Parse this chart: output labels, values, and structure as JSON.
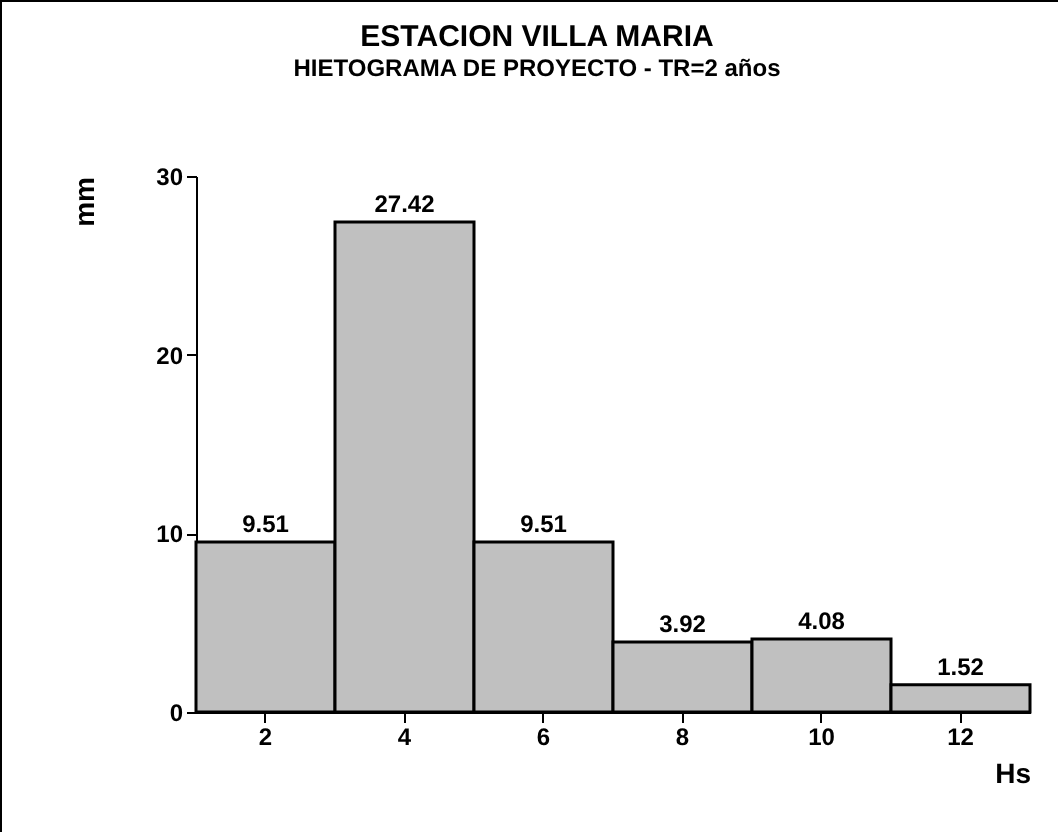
{
  "chart_data": {
    "type": "bar",
    "title": "ESTACION VILLA MARIA",
    "subtitle": "HIETOGRAMA DE PROYECTO - TR=2 años",
    "xlabel": "Hs",
    "ylabel": "mm",
    "categories": [
      "2",
      "4",
      "6",
      "8",
      "10",
      "12"
    ],
    "values": [
      9.51,
      27.42,
      9.51,
      3.92,
      4.08,
      1.52
    ],
    "color": "#c0c0c0",
    "ylim": [
      0,
      30
    ],
    "yticks": [
      0,
      10,
      20,
      30
    ],
    "data_labels": true,
    "grid": false
  }
}
